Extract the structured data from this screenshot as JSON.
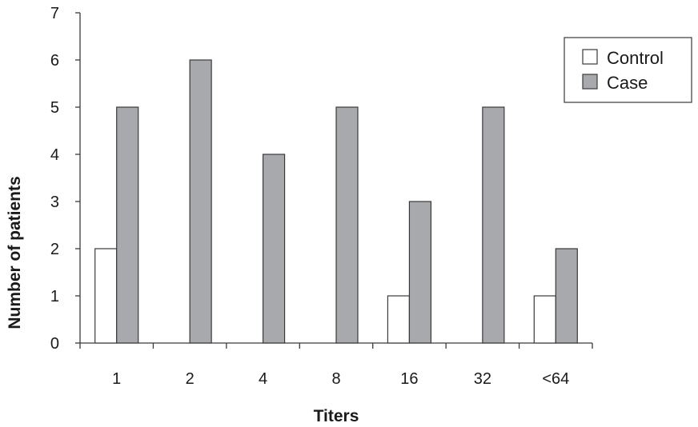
{
  "chart_data": {
    "type": "bar",
    "title": "",
    "xlabel": "Titers",
    "ylabel": "Number of patients",
    "categories": [
      "1",
      "2",
      "4",
      "8",
      "16",
      "32",
      "<64"
    ],
    "ylim": [
      0,
      7
    ],
    "yticks": [
      0,
      1,
      2,
      3,
      4,
      5,
      6,
      7
    ],
    "grid": false,
    "legend_position": "top-right",
    "series": [
      {
        "name": "Control",
        "values": [
          2,
          0,
          0,
          0,
          1,
          0,
          1
        ],
        "color": "#ffffff"
      },
      {
        "name": "Case",
        "values": [
          5,
          6,
          4,
          5,
          3,
          5,
          2
        ],
        "color": "#a7a9ac"
      }
    ]
  }
}
